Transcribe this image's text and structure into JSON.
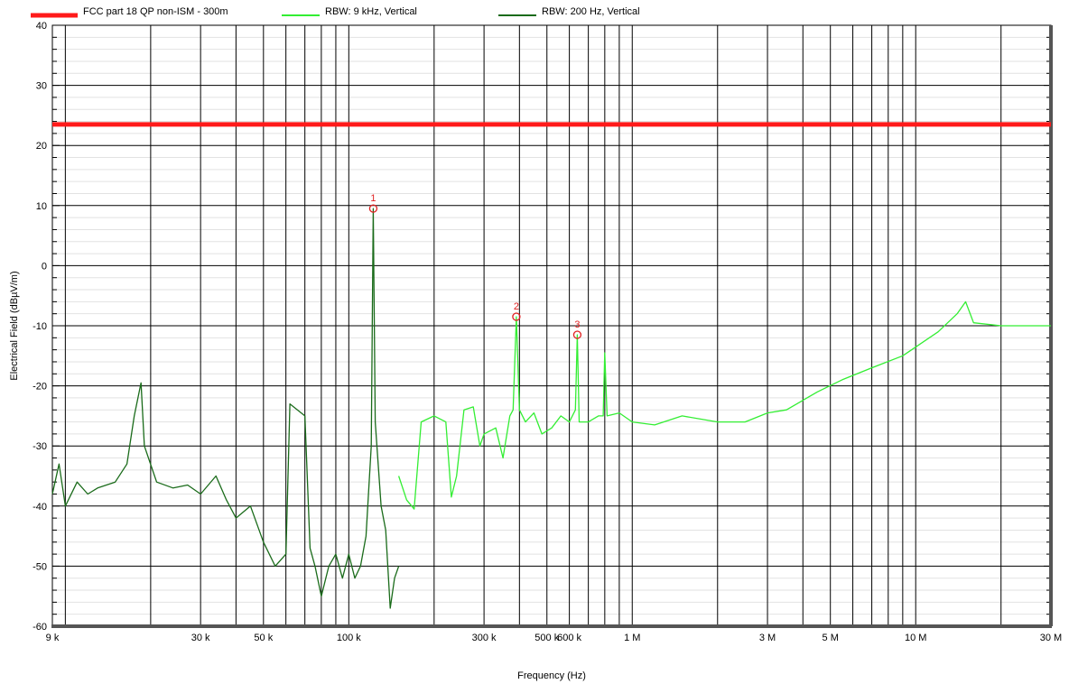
{
  "chart_data": {
    "type": "line",
    "x_scale": "log",
    "grid": true,
    "legend_placement": "top",
    "xlabel": "Frequency (Hz)",
    "ylabel": "Electrical Field (dBµV/m)",
    "xlim": [
      9000,
      30000000
    ],
    "ylim": [
      -60,
      40
    ],
    "y_ticks": [
      40,
      30,
      20,
      10,
      0,
      -10,
      -20,
      -30,
      -40,
      -50,
      -60
    ],
    "x_tick_labels": [
      {
        "value": 9000,
        "label": "9 k"
      },
      {
        "value": 30000,
        "label": "30 k"
      },
      {
        "value": 50000,
        "label": "50 k"
      },
      {
        "value": 100000,
        "label": "100 k"
      },
      {
        "value": 300000,
        "label": "300 k"
      },
      {
        "value": 500000,
        "label": "500 k"
      },
      {
        "value": 600000,
        "label": "600 k"
      },
      {
        "value": 1000000,
        "label": "1 M"
      },
      {
        "value": 3000000,
        "label": "3 M"
      },
      {
        "value": 5000000,
        "label": "5 M"
      },
      {
        "value": 10000000,
        "label": "10 M"
      },
      {
        "value": 30000000,
        "label": "30 M"
      }
    ],
    "series": [
      {
        "name": "FCC part 18 QP non-ISM - 300m",
        "color": "#ff1a1a",
        "points": [
          [
            9000,
            23.5
          ],
          [
            30000000,
            23.5
          ]
        ]
      },
      {
        "name": "RBW: 9 kHz, Vertical",
        "color": "#33ee33",
        "points": [
          [
            150000,
            -35
          ],
          [
            160000,
            -39
          ],
          [
            170000,
            -40.5
          ],
          [
            180000,
            -26
          ],
          [
            200000,
            -25
          ],
          [
            220000,
            -26
          ],
          [
            230000,
            -38.5
          ],
          [
            240000,
            -35
          ],
          [
            255000,
            -24
          ],
          [
            275000,
            -23.5
          ],
          [
            290000,
            -30
          ],
          [
            300000,
            -28
          ],
          [
            330000,
            -27
          ],
          [
            350000,
            -32
          ],
          [
            370000,
            -25
          ],
          [
            380000,
            -24
          ],
          [
            390000,
            -8.5
          ],
          [
            400000,
            -24
          ],
          [
            420000,
            -26
          ],
          [
            450000,
            -24.5
          ],
          [
            480000,
            -28
          ],
          [
            520000,
            -27
          ],
          [
            560000,
            -25
          ],
          [
            600000,
            -26
          ],
          [
            630000,
            -24
          ],
          [
            640000,
            -11.5
          ],
          [
            650000,
            -26
          ],
          [
            700000,
            -26
          ],
          [
            760000,
            -25
          ],
          [
            790000,
            -25
          ],
          [
            800000,
            -14.5
          ],
          [
            815000,
            -25
          ],
          [
            900000,
            -24.5
          ],
          [
            1000000,
            -26
          ],
          [
            1200000,
            -26.5
          ],
          [
            1500000,
            -25
          ],
          [
            2000000,
            -26
          ],
          [
            2500000,
            -26
          ],
          [
            3000000,
            -24.5
          ],
          [
            3500000,
            -24
          ],
          [
            4500000,
            -21
          ],
          [
            5500000,
            -19
          ],
          [
            7000000,
            -17
          ],
          [
            9000000,
            -15
          ],
          [
            12000000,
            -11
          ],
          [
            14000000,
            -8
          ],
          [
            15000000,
            -6
          ],
          [
            16000000,
            -9.5
          ],
          [
            20000000,
            -10
          ],
          [
            25000000,
            -10
          ],
          [
            30000000,
            -10
          ]
        ]
      },
      {
        "name": "RBW: 200 Hz, Vertical",
        "color": "#1a6b1a",
        "points": [
          [
            9000,
            -38
          ],
          [
            9500,
            -33
          ],
          [
            10000,
            -40
          ],
          [
            11000,
            -36
          ],
          [
            12000,
            -38
          ],
          [
            13000,
            -37
          ],
          [
            15000,
            -36
          ],
          [
            16500,
            -33
          ],
          [
            17500,
            -25
          ],
          [
            18500,
            -19.5
          ],
          [
            19000,
            -30
          ],
          [
            21000,
            -36
          ],
          [
            24000,
            -37
          ],
          [
            27000,
            -36.5
          ],
          [
            30000,
            -38
          ],
          [
            34000,
            -35
          ],
          [
            37000,
            -39
          ],
          [
            40000,
            -42
          ],
          [
            45000,
            -40
          ],
          [
            50000,
            -46
          ],
          [
            55000,
            -50
          ],
          [
            60000,
            -48
          ],
          [
            62000,
            -23
          ],
          [
            70000,
            -25
          ],
          [
            73000,
            -47
          ],
          [
            76000,
            -50
          ],
          [
            80000,
            -55
          ],
          [
            85000,
            -50
          ],
          [
            90000,
            -48
          ],
          [
            95000,
            -52
          ],
          [
            100000,
            -48
          ],
          [
            105000,
            -52
          ],
          [
            110000,
            -50
          ],
          [
            115000,
            -45
          ],
          [
            120000,
            -30
          ],
          [
            122000,
            9.5
          ],
          [
            124000,
            -26
          ],
          [
            130000,
            -40
          ],
          [
            135000,
            -44
          ],
          [
            140000,
            -57
          ],
          [
            145000,
            -52
          ],
          [
            150000,
            -50
          ]
        ]
      }
    ],
    "markers": [
      {
        "label": "1",
        "x": 122000,
        "y": 9.5
      },
      {
        "label": "2",
        "x": 390000,
        "y": -8.5
      },
      {
        "label": "3",
        "x": 640000,
        "y": -11.5
      }
    ]
  }
}
